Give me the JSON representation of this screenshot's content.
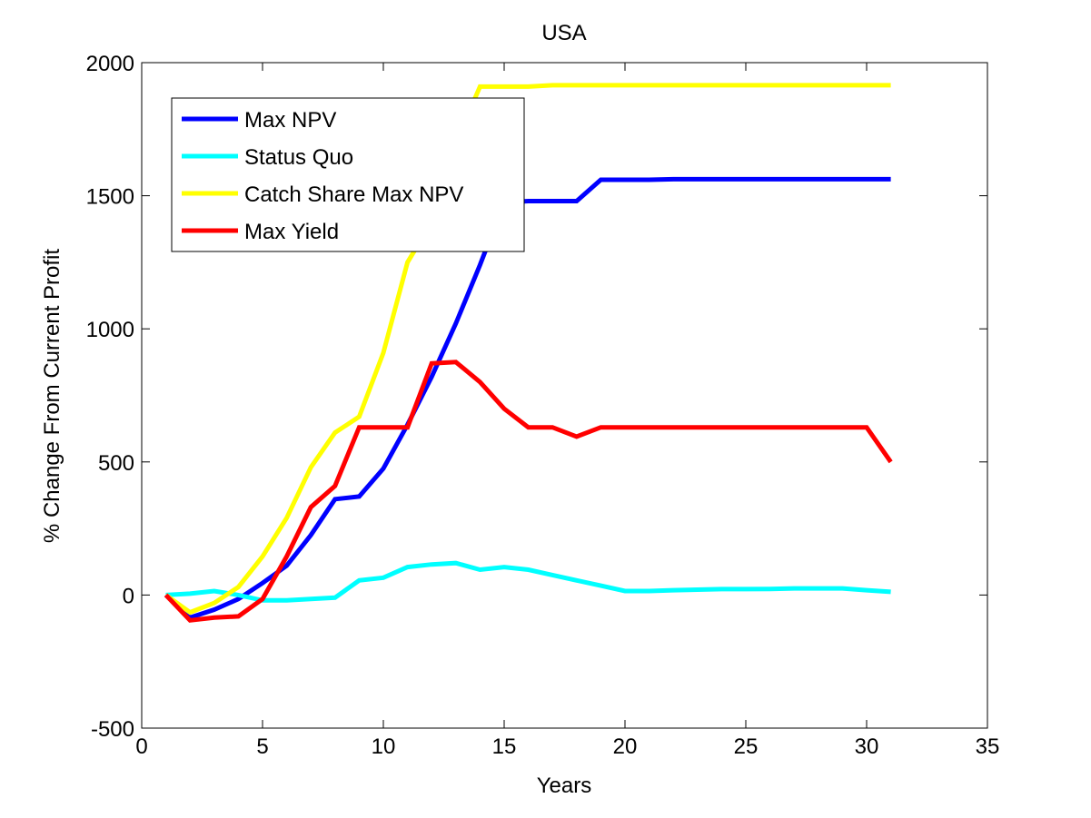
{
  "chart_data": {
    "type": "line",
    "title": "USA",
    "xlabel": "Years",
    "ylabel": "% Change From Current Profit",
    "xlim": [
      0,
      35
    ],
    "ylim": [
      -500,
      2000
    ],
    "xticks": [
      0,
      5,
      10,
      15,
      20,
      25,
      30,
      35
    ],
    "yticks": [
      -500,
      0,
      500,
      1000,
      1500,
      2000
    ],
    "grid": false,
    "legend_position": "top-left",
    "x": [
      1,
      2,
      3,
      4,
      5,
      6,
      7,
      8,
      9,
      10,
      11,
      12,
      13,
      14,
      15,
      16,
      17,
      18,
      19,
      20,
      21,
      22,
      23,
      24,
      25,
      26,
      27,
      28,
      29,
      30,
      31
    ],
    "series": [
      {
        "name": "Max NPV",
        "color": "#0000ff",
        "values": [
          0,
          -85,
          -55,
          -15,
          45,
          110,
          225,
          360,
          370,
          475,
          640,
          820,
          1020,
          1240,
          1475,
          1480,
          1480,
          1480,
          1560,
          1560,
          1560,
          1562,
          1562,
          1562,
          1562,
          1562,
          1562,
          1562,
          1562,
          1562,
          1562
        ]
      },
      {
        "name": "Status Quo",
        "color": "#00ffff",
        "values": [
          0,
          5,
          15,
          0,
          -20,
          -20,
          -15,
          -10,
          55,
          65,
          105,
          115,
          120,
          95,
          105,
          95,
          75,
          55,
          35,
          15,
          15,
          18,
          20,
          22,
          22,
          23,
          25,
          25,
          25,
          18,
          12
        ]
      },
      {
        "name": "Catch Share Max NPV",
        "color": "#ffff00",
        "values": [
          0,
          -65,
          -30,
          30,
          145,
          290,
          480,
          610,
          670,
          910,
          1250,
          1400,
          1700,
          1910,
          1910,
          1910,
          1915,
          1915,
          1915,
          1915,
          1915,
          1915,
          1915,
          1915,
          1915,
          1915,
          1915,
          1915,
          1915,
          1915,
          1915
        ]
      },
      {
        "name": "Max Yield",
        "color": "#ff0000",
        "values": [
          0,
          -95,
          -85,
          -80,
          -15,
          145,
          330,
          410,
          630,
          630,
          630,
          870,
          875,
          800,
          700,
          630,
          630,
          595,
          630,
          630,
          630,
          630,
          630,
          630,
          630,
          630,
          630,
          630,
          630,
          630,
          500
        ]
      }
    ]
  }
}
